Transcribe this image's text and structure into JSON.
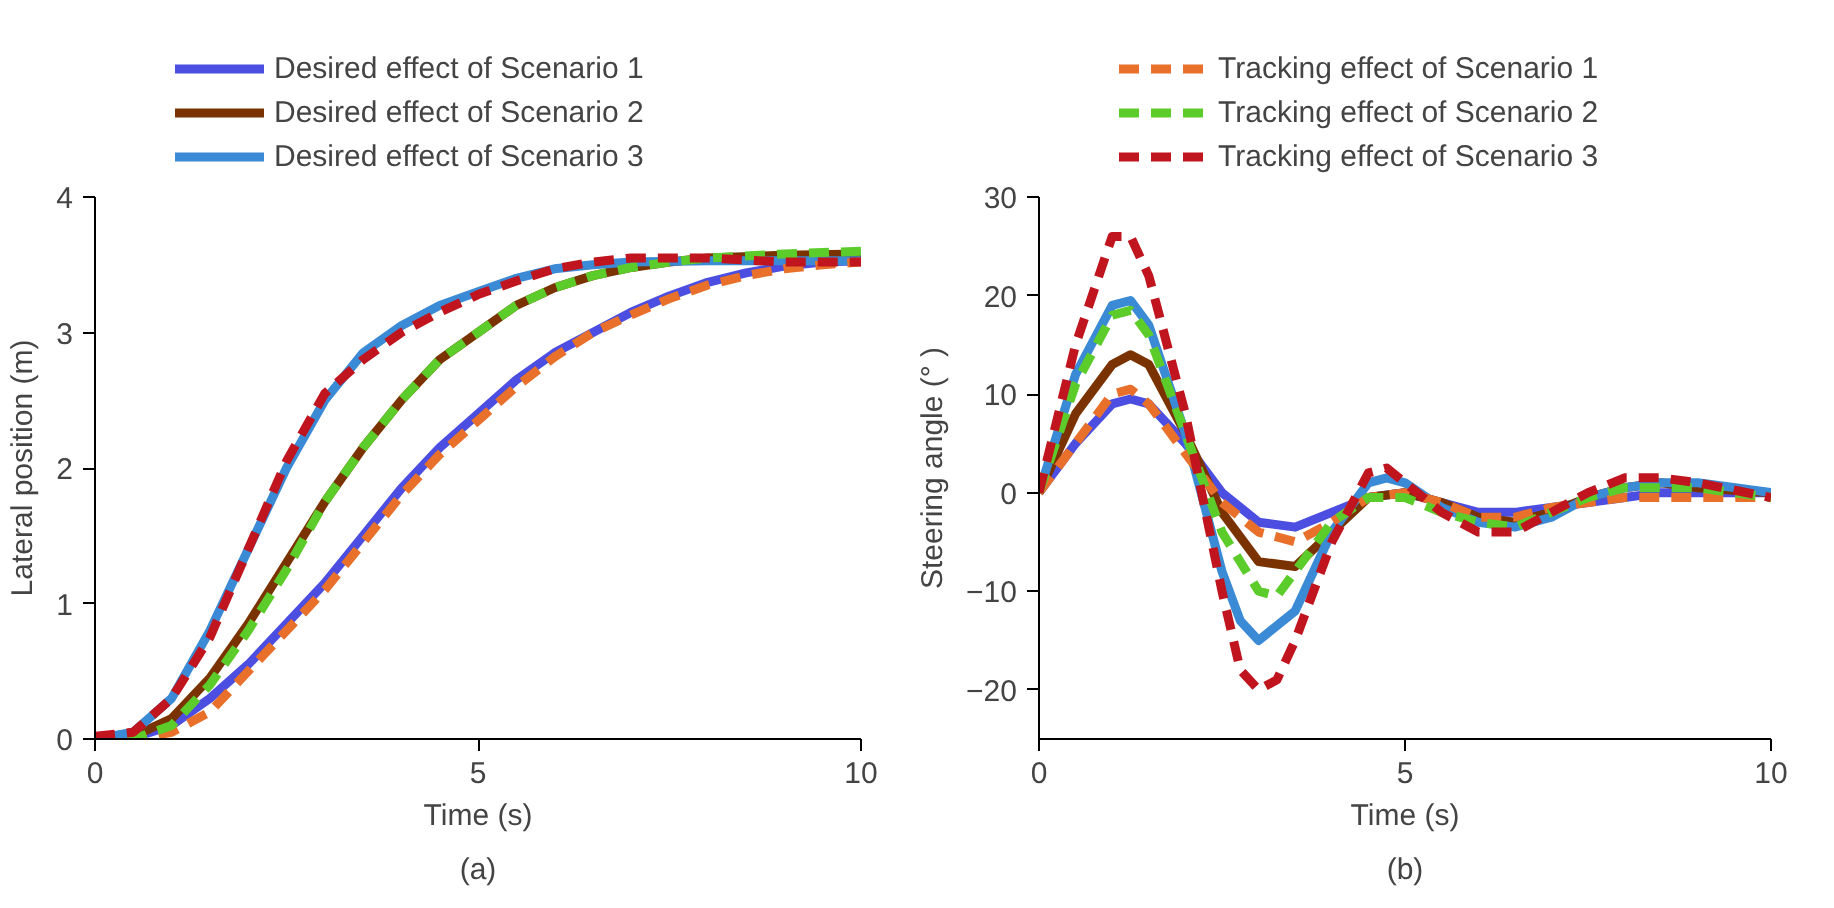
{
  "chart_data": [
    {
      "type": "line",
      "xlabel": "Time (s)",
      "ylabel": "Lateral position (m)",
      "annotations": [
        "(a)"
      ],
      "xlim": [
        0,
        10
      ],
      "ylim": [
        0,
        4
      ],
      "xticks": [
        0,
        5,
        10
      ],
      "yticks": [
        0,
        1,
        2,
        3,
        4
      ],
      "grid": false,
      "legend": "top",
      "series": [
        {
          "name": "Desired effect of Scenario 1",
          "color": "#4b4ee0",
          "line_style": "solid",
          "x": [
            0,
            0.5,
            1,
            1.5,
            2,
            2.5,
            3,
            3.5,
            4,
            4.5,
            5,
            5.5,
            6,
            6.5,
            7,
            7.5,
            8,
            8.5,
            9,
            9.5,
            10
          ],
          "values": [
            0,
            0.01,
            0.1,
            0.3,
            0.55,
            0.85,
            1.15,
            1.5,
            1.85,
            2.15,
            2.4,
            2.65,
            2.85,
            3.0,
            3.15,
            3.27,
            3.37,
            3.44,
            3.49,
            3.52,
            3.53
          ]
        },
        {
          "name": "Desired effect of Scenario 2",
          "color": "#7a3300",
          "line_style": "solid",
          "x": [
            0,
            0.5,
            1,
            1.5,
            2,
            2.5,
            3,
            3.5,
            4,
            4.5,
            5,
            5.5,
            6,
            6.5,
            7,
            7.5,
            8,
            9,
            10
          ],
          "values": [
            0,
            0.02,
            0.15,
            0.45,
            0.85,
            1.3,
            1.75,
            2.15,
            2.5,
            2.8,
            3.0,
            3.2,
            3.33,
            3.42,
            3.48,
            3.52,
            3.55,
            3.57,
            3.58
          ]
        },
        {
          "name": "Desired effect of Scenario 3",
          "color": "#3a8ad6",
          "line_style": "solid",
          "x": [
            0,
            0.5,
            1,
            1.5,
            2,
            2.5,
            3,
            3.5,
            4,
            4.5,
            5,
            5.5,
            6,
            6.5,
            7,
            8,
            9,
            10
          ],
          "values": [
            0,
            0.05,
            0.3,
            0.8,
            1.4,
            2.0,
            2.5,
            2.85,
            3.05,
            3.2,
            3.3,
            3.4,
            3.47,
            3.5,
            3.52,
            3.53,
            3.53,
            3.53
          ]
        },
        {
          "color": "#e8702a",
          "line_style": "dashed",
          "x": [
            0,
            0.5,
            1,
            1.5,
            2,
            2.5,
            3,
            3.5,
            4,
            4.5,
            5,
            5.5,
            6,
            6.5,
            7,
            7.5,
            8,
            8.5,
            9,
            9.5,
            10
          ],
          "values": [
            0,
            0,
            0.05,
            0.2,
            0.5,
            0.8,
            1.1,
            1.45,
            1.8,
            2.1,
            2.35,
            2.6,
            2.82,
            3.0,
            3.13,
            3.25,
            3.35,
            3.42,
            3.47,
            3.5,
            3.52
          ]
        },
        {
          "color": "#5ccc2a",
          "line_style": "dashed",
          "x": [
            0,
            0.5,
            1,
            1.5,
            2,
            2.5,
            3,
            3.5,
            4,
            4.5,
            5,
            5.5,
            6,
            6.5,
            7,
            7.5,
            8,
            9,
            10
          ],
          "values": [
            0,
            0,
            0.1,
            0.4,
            0.8,
            1.25,
            1.75,
            2.15,
            2.5,
            2.8,
            3.0,
            3.2,
            3.33,
            3.42,
            3.48,
            3.52,
            3.55,
            3.58,
            3.6
          ]
        },
        {
          "color": "#c0141e",
          "line_style": "dashed",
          "x": [
            0,
            0.5,
            1,
            1.5,
            2,
            2.5,
            3,
            3.5,
            4,
            4.5,
            5,
            5.5,
            6,
            6.5,
            7,
            8,
            9,
            10
          ],
          "values": [
            0.02,
            0.05,
            0.3,
            0.75,
            1.4,
            2.05,
            2.55,
            2.8,
            3.0,
            3.15,
            3.28,
            3.38,
            3.47,
            3.52,
            3.55,
            3.55,
            3.52,
            3.52
          ]
        }
      ]
    },
    {
      "type": "line",
      "xlabel": "Time (s)",
      "ylabel": "Steering angle (° )",
      "annotations": [
        "(b)"
      ],
      "xlim": [
        0,
        10
      ],
      "ylim": [
        -25,
        30
      ],
      "xticks": [
        0,
        5,
        10
      ],
      "yticks": [
        -20,
        -10,
        0,
        10,
        20,
        30
      ],
      "grid": false,
      "legend": "top",
      "series": [
        {
          "color": "#4b4ee0",
          "line_style": "solid",
          "x": [
            0,
            0.5,
            1,
            1.25,
            1.5,
            2,
            2.5,
            3,
            3.5,
            4,
            4.5,
            5,
            5.5,
            6,
            6.5,
            7,
            7.5,
            8,
            8.5,
            9,
            10
          ],
          "values": [
            0,
            5,
            9,
            9.5,
            9,
            5,
            0,
            -3,
            -3.5,
            -2,
            -0.5,
            0,
            -1,
            -2,
            -2,
            -1.5,
            -1,
            -0.5,
            0,
            0,
            0
          ]
        },
        {
          "color": "#7a3300",
          "line_style": "solid",
          "x": [
            0,
            0.5,
            1,
            1.25,
            1.5,
            2,
            2.5,
            3,
            3.5,
            4,
            4.5,
            5,
            5.5,
            6,
            6.5,
            7,
            7.5,
            8,
            8.5,
            9,
            10
          ],
          "values": [
            0,
            8,
            13,
            14,
            13,
            6,
            -2,
            -7,
            -7.5,
            -4,
            -0.5,
            0,
            -1,
            -2.5,
            -3,
            -2,
            -0.5,
            0.5,
            1,
            0.5,
            0
          ]
        },
        {
          "color": "#3a8ad6",
          "line_style": "solid",
          "x": [
            0,
            0.5,
            1,
            1.25,
            1.5,
            2,
            2.5,
            2.75,
            3,
            3.5,
            4,
            4.5,
            4.75,
            5,
            5.5,
            6,
            6.5,
            7,
            7.5,
            8,
            8.5,
            9,
            10
          ],
          "values": [
            0,
            12,
            19,
            19.5,
            17,
            6,
            -8,
            -13,
            -15,
            -12,
            -4,
            1,
            1.5,
            1,
            -1.5,
            -3,
            -3.5,
            -2.5,
            -0.5,
            0.5,
            1,
            1,
            0
          ]
        },
        {
          "name": "Tracking effect of Scenario 1",
          "color": "#e8702a",
          "line_style": "dashed",
          "x": [
            0,
            0.5,
            1,
            1.25,
            1.5,
            2,
            2.5,
            3,
            3.5,
            4,
            4.5,
            5,
            5.5,
            6,
            6.5,
            7,
            7.5,
            8,
            9,
            10
          ],
          "values": [
            0,
            5,
            10,
            10.5,
            9,
            4,
            -1,
            -4,
            -5,
            -3,
            -0.5,
            0,
            -1,
            -2.5,
            -2.5,
            -1.5,
            -1,
            -0.5,
            -0.5,
            -0.5
          ]
        },
        {
          "name": "Tracking effect of Scenario 2",
          "color": "#5ccc2a",
          "line_style": "dashed",
          "x": [
            0,
            0.5,
            1,
            1.25,
            1.5,
            2,
            2.5,
            3,
            3.25,
            3.5,
            4,
            4.5,
            5,
            5.5,
            6,
            6.5,
            7,
            7.5,
            8,
            8.5,
            9,
            10
          ],
          "values": [
            0,
            11,
            18,
            18.5,
            16,
            6,
            -4,
            -10,
            -10.5,
            -8,
            -3,
            -0.5,
            -0.5,
            -2,
            -3,
            -3.5,
            -2,
            -0.5,
            0.5,
            0.5,
            0.5,
            -0.5
          ]
        },
        {
          "name": "Tracking effect of Scenario 3",
          "color": "#c0141e",
          "line_style": "dashed",
          "x": [
            0,
            0.5,
            1,
            1.25,
            1.5,
            2,
            2.5,
            2.75,
            3,
            3.25,
            3.5,
            4,
            4.5,
            4.75,
            5,
            5.5,
            6,
            6.5,
            7,
            7.5,
            8,
            8.5,
            9,
            10
          ],
          "values": [
            0,
            15,
            26,
            26,
            22,
            8,
            -10,
            -18,
            -20,
            -19,
            -15,
            -5,
            2,
            2.5,
            1,
            -2,
            -4,
            -4,
            -2,
            0,
            1.5,
            1.5,
            1,
            -0.5
          ]
        }
      ]
    }
  ]
}
